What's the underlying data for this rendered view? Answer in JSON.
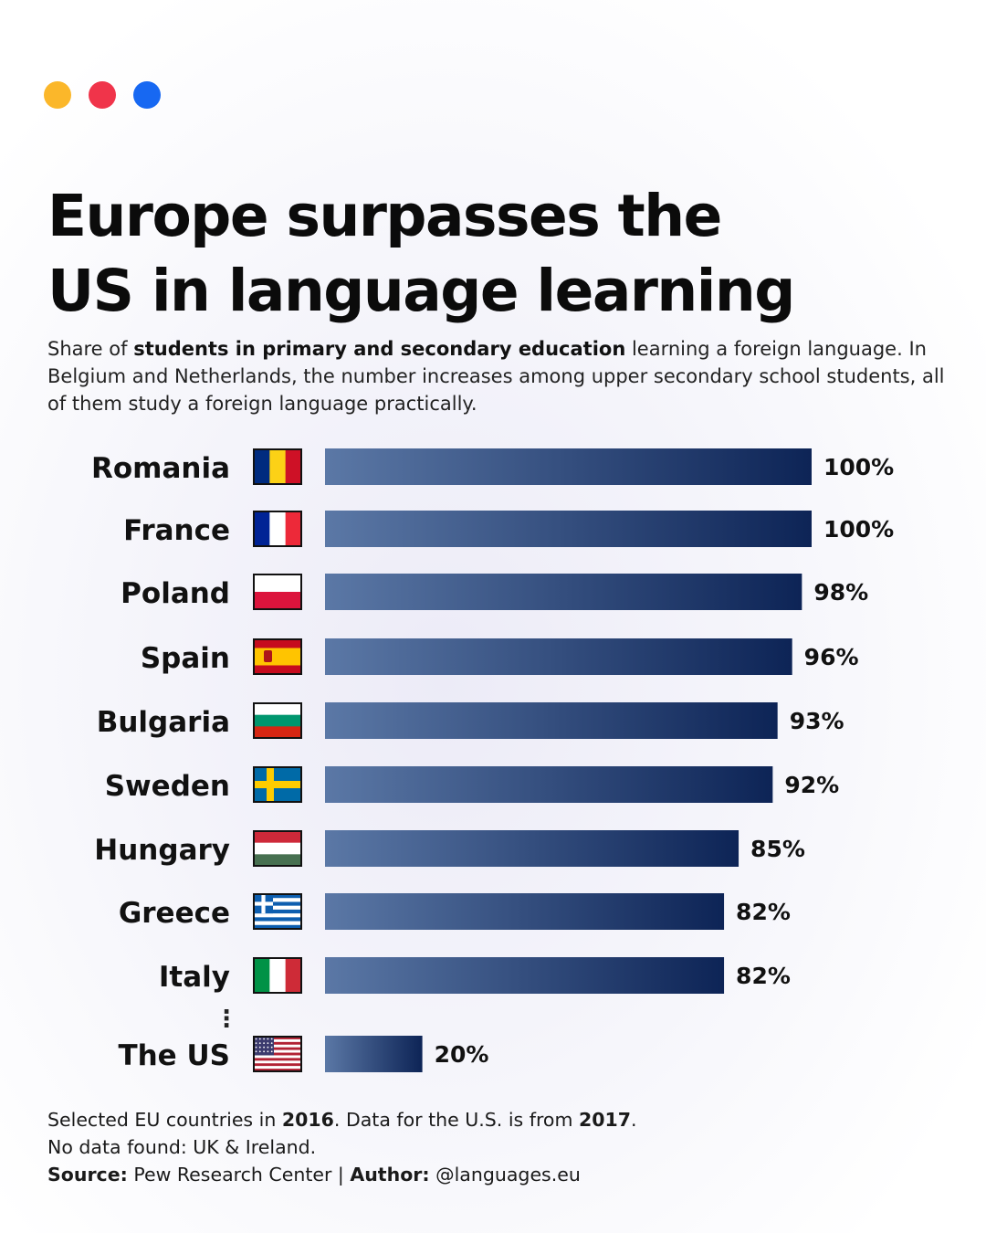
{
  "colors": {
    "dots": [
      "#fbb72a",
      "#f0344a",
      "#1768f2"
    ],
    "bar_start": "#5b78a6",
    "bar_end": "#0d2456"
  },
  "header": {
    "title_lines": [
      "Europe surpasses the",
      "US in language learning"
    ],
    "subtitle_pre": "Share of ",
    "subtitle_bold": "students in primary and secondary education",
    "subtitle_post": " learning a foreign language. In Belgium and Netherlands, the number increases among upper secondary school students, all of them study a foreign language practically."
  },
  "chart_data": {
    "type": "bar",
    "orientation": "horizontal",
    "categories": [
      "Romania",
      "France",
      "Poland",
      "Spain",
      "Bulgaria",
      "Sweden",
      "Hungary",
      "Greece",
      "Italy",
      "The US"
    ],
    "values": [
      100,
      100,
      98,
      96,
      93,
      92,
      85,
      82,
      82,
      20
    ],
    "value_labels": [
      "100%",
      "100%",
      "98%",
      "96%",
      "93%",
      "92%",
      "85%",
      "82%",
      "82%",
      "20%"
    ],
    "flags": [
      "romania-flag",
      "france-flag",
      "poland-flag",
      "spain-flag",
      "bulgaria-flag",
      "sweden-flag",
      "hungary-flag",
      "greece-flag",
      "italy-flag",
      "us-flag"
    ],
    "unit": "%",
    "xlim": [
      0,
      100
    ],
    "ellipsis_before_last": "⋮",
    "grid": false
  },
  "footer": {
    "line1_a": "Selected EU countries in ",
    "line1_b": "2016",
    "line1_c": ". Data for the U.S. is from ",
    "line1_d": "2017",
    "line1_e": ".",
    "line2": "No data found: UK & Ireland.",
    "source_label": "Source:",
    "source_value": " Pew Research Center | ",
    "author_label": "Author:",
    "author_value": " @languages.eu"
  }
}
